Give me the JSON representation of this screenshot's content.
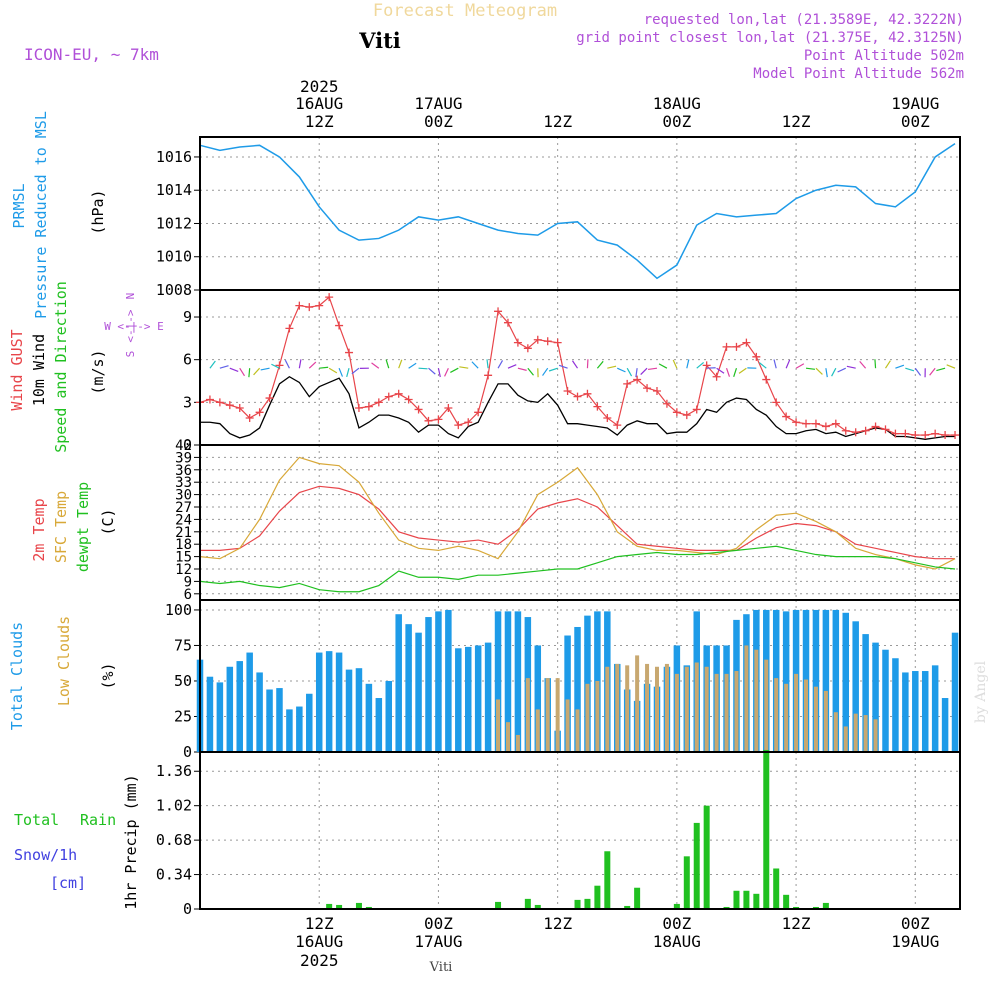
{
  "header": {
    "title": "Forecast Meteogram",
    "location": "Viti",
    "model": "ICON-EU, ~ 7km",
    "requested": "requested lon,lat (21.3589E, 42.3222N)",
    "grid_point": "grid point closest lon,lat (21.375E, 42.3125N)",
    "point_altitude": "Point Altitude 502m",
    "model_altitude": "Model Point Altitude 562m",
    "footer_location": "Viti",
    "watermark": "by Angel"
  },
  "time_axis": {
    "top": [
      {
        "hour": 12,
        "l1": "2025",
        "l2": "16AUG",
        "l3": "12Z"
      },
      {
        "hour": 24,
        "l1": "",
        "l2": "17AUG",
        "l3": "00Z"
      },
      {
        "hour": 36,
        "l1": "",
        "l2": "",
        "l3": "12Z"
      },
      {
        "hour": 48,
        "l1": "",
        "l2": "18AUG",
        "l3": "00Z"
      },
      {
        "hour": 60,
        "l1": "",
        "l2": "",
        "l3": "12Z"
      },
      {
        "hour": 72,
        "l1": "",
        "l2": "19AUG",
        "l3": "00Z"
      }
    ],
    "bottom": [
      {
        "hour": 12,
        "l1": "12Z",
        "l2": "16AUG",
        "l3": "2025"
      },
      {
        "hour": 24,
        "l1": "00Z",
        "l2": "17AUG",
        "l3": ""
      },
      {
        "hour": 36,
        "l1": "12Z",
        "l2": "",
        "l3": ""
      },
      {
        "hour": 48,
        "l1": "00Z",
        "l2": "18AUG",
        "l3": ""
      },
      {
        "hour": 60,
        "l1": "12Z",
        "l2": "",
        "l3": ""
      },
      {
        "hour": 72,
        "l1": "00Z",
        "l2": "19AUG",
        "l3": ""
      }
    ]
  },
  "colors": {
    "pressure": "#1e9be8",
    "gust": "#e8454a",
    "wind": "#000000",
    "wind_dir": "#20c020",
    "temp": "#e8454a",
    "sfc_temp": "#d8a838",
    "dewpt": "#20c020",
    "total_clouds": "#1e9be8",
    "low_clouds": "#c8a870",
    "rain": "#20c020",
    "snow": "#4040e0",
    "title": "#f0d89c",
    "meta": "#b050d8"
  },
  "panels": {
    "pressure": {
      "label1": "PRMSL",
      "label2": "Pressure Reduced to MSL",
      "unit": "(hPa)",
      "ticks": [
        "1008",
        "1010",
        "1012",
        "1014",
        "1016"
      ]
    },
    "wind": {
      "label_gust": "Wind GUST",
      "label_wind": "10m Wind",
      "label_dir": "Speed and Direction",
      "unit": "(m/s)",
      "ticks": [
        "0",
        "3",
        "6",
        "9"
      ],
      "compass_n": "N",
      "compass_s": "S",
      "compass_ew": "W <-|-> E",
      "compass_v1": "<-|->",
      "compass_v2": "<-|->"
    },
    "temp": {
      "label_t": "2m Temp",
      "label_sfc": "SFC Temp",
      "label_dew": "dewpt Temp",
      "unit": "(C)",
      "ticks": [
        "6",
        "9",
        "12",
        "15",
        "18",
        "21",
        "24",
        "27",
        "30",
        "33",
        "36",
        "39",
        "42"
      ]
    },
    "clouds": {
      "label_total": "Total Clouds",
      "label_low": "Low Clouds",
      "unit": "(%)",
      "ticks": [
        "0",
        "25",
        "50",
        "75",
        "100"
      ]
    },
    "precip": {
      "label_total": "Total",
      "label_rain": "Rain",
      "label_snow": "Snow/1h",
      "label_cm": "[cm]",
      "axis_label": "1hr Precip (mm)",
      "ticks": [
        "0",
        "0.34",
        "0.68",
        "1.02",
        "1.36"
      ]
    }
  },
  "chart_data": [
    {
      "type": "line",
      "title": "PRMSL Pressure Reduced to MSL",
      "ylabel": "(hPa)",
      "ylim": [
        1008,
        1017.2
      ],
      "x_hours": [
        0,
        2,
        4,
        6,
        8,
        10,
        12,
        14,
        16,
        18,
        20,
        22,
        24,
        26,
        28,
        30,
        32,
        34,
        36,
        38,
        40,
        42,
        44,
        46,
        48,
        50,
        52,
        54,
        56,
        58,
        60,
        62,
        64,
        66,
        68,
        70,
        72,
        74,
        76
      ],
      "series": [
        {
          "name": "PRMSL",
          "values": [
            1016.7,
            1016.4,
            1016.6,
            1016.7,
            1016,
            1014.8,
            1013.0,
            1011.6,
            1011.0,
            1011.1,
            1011.6,
            1012.4,
            1012.2,
            1012.4,
            1012.0,
            1011.6,
            1011.4,
            1011.3,
            1012.0,
            1012.1,
            1011.0,
            1010.7,
            1009.8,
            1008.7,
            1009.5,
            1011.9,
            1012.6,
            1012.4,
            1012.5,
            1012.6,
            1013.5,
            1014.0,
            1014.3,
            1014.2,
            1013.2,
            1013.0,
            1013.9,
            1016.0,
            1016.8
          ]
        }
      ]
    },
    {
      "type": "line",
      "title": "Wind GUST / 10m Wind Speed and Direction",
      "ylabel": "(m/s)",
      "ylim": [
        0,
        10.9
      ],
      "x_hours": [
        0,
        1,
        2,
        3,
        4,
        5,
        6,
        7,
        8,
        9,
        10,
        11,
        12,
        13,
        14,
        15,
        16,
        17,
        18,
        19,
        20,
        21,
        22,
        23,
        24,
        25,
        26,
        27,
        28,
        29,
        30,
        31,
        32,
        33,
        34,
        35,
        36,
        37,
        38,
        39,
        40,
        41,
        42,
        43,
        44,
        45,
        46,
        47,
        48,
        49,
        50,
        51,
        52,
        53,
        54,
        55,
        56,
        57,
        58,
        59,
        60,
        61,
        62,
        63,
        64,
        65,
        66,
        67,
        68,
        69,
        70,
        71,
        72,
        73,
        74,
        75,
        76
      ],
      "series": [
        {
          "name": "Wind GUST",
          "values": [
            3.0,
            3.2,
            3.0,
            2.8,
            2.6,
            1.9,
            2.3,
            3.3,
            5.6,
            8.2,
            9.8,
            9.7,
            9.8,
            10.4,
            8.4,
            6.5,
            2.6,
            2.7,
            3.0,
            3.4,
            3.6,
            3.2,
            2.5,
            1.7,
            1.8,
            2.6,
            1.4,
            1.6,
            2.3,
            4.9,
            9.4,
            8.6,
            7.2,
            6.8,
            7.4,
            7.3,
            7.2,
            3.8,
            3.4,
            3.6,
            2.7,
            1.9,
            1.4,
            4.3,
            4.6,
            4.0,
            3.8,
            2.9,
            2.3,
            2.1,
            2.5,
            5.6,
            4.8,
            6.9,
            6.9,
            7.2,
            6.2,
            4.6,
            3.0,
            2.0,
            1.6,
            1.5,
            1.5,
            1.3,
            1.5,
            1.0,
            0.9,
            1.0,
            1.3,
            1.1,
            0.8,
            0.8,
            0.7,
            0.7,
            0.8,
            0.7,
            0.7
          ]
        },
        {
          "name": "10m Wind",
          "values": [
            1.6,
            1.6,
            1.5,
            0.8,
            0.5,
            0.7,
            1.2,
            2.8,
            4.3,
            4.8,
            4.4,
            3.4,
            4.1,
            4.4,
            4.7,
            3.6,
            1.2,
            1.6,
            2.1,
            2.1,
            1.9,
            1.6,
            0.9,
            1.4,
            1.4,
            0.8,
            0.5,
            1.3,
            1.6,
            3.0,
            4.3,
            4.3,
            3.5,
            3.1,
            3.0,
            3.6,
            2.8,
            1.5,
            1.5,
            1.4,
            1.3,
            1.2,
            0.7,
            1.4,
            1.7,
            1.5,
            1.5,
            0.8,
            0.9,
            0.9,
            1.5,
            2.5,
            2.3,
            3.0,
            3.3,
            3.2,
            2.5,
            2.1,
            1.3,
            0.8,
            0.8,
            1.0,
            1.1,
            0.8,
            0.9,
            0.6,
            0.8,
            1.0,
            1.2,
            1.1,
            0.6,
            0.6,
            0.5,
            0.4,
            0.5,
            0.6,
            0.6
          ]
        }
      ]
    },
    {
      "type": "line",
      "title": "2m Temp / SFC Temp / dewpt Temp",
      "ylabel": "(C)",
      "ylim": [
        4.5,
        42
      ],
      "x_hours": [
        0,
        2,
        4,
        6,
        8,
        10,
        12,
        14,
        16,
        18,
        20,
        22,
        24,
        26,
        28,
        30,
        32,
        34,
        36,
        38,
        40,
        42,
        44,
        46,
        48,
        50,
        52,
        54,
        56,
        58,
        60,
        62,
        64,
        66,
        68,
        70,
        72,
        74,
        76
      ],
      "series": [
        {
          "name": "2m Temp",
          "values": [
            16.5,
            16.5,
            17.0,
            20.0,
            26.0,
            30.5,
            32.0,
            31.5,
            30.0,
            26.5,
            21.0,
            19.5,
            19.0,
            18.5,
            19.0,
            18.0,
            21.5,
            26.5,
            28.0,
            29.0,
            27.0,
            22.5,
            18.0,
            17.5,
            17.0,
            16.5,
            16.5,
            16.5,
            19.5,
            22.0,
            23.0,
            22.5,
            21.0,
            18.0,
            17.0,
            16.0,
            15.0,
            14.5,
            14.5
          ]
        },
        {
          "name": "SFC Temp",
          "values": [
            15.0,
            14.5,
            17.0,
            24.0,
            33.5,
            39.0,
            37.5,
            37.0,
            33.0,
            25.5,
            19.0,
            17.0,
            16.5,
            17.5,
            16.5,
            14.5,
            21.0,
            30.0,
            33.0,
            36.5,
            30.0,
            21.0,
            17.5,
            16.5,
            16.5,
            16.0,
            15.5,
            17.0,
            21.5,
            25.0,
            25.5,
            23.5,
            21.0,
            17.0,
            15.5,
            14.5,
            13.0,
            12.0,
            14.5
          ]
        },
        {
          "name": "dewpt Temp",
          "values": [
            9.0,
            8.5,
            9.0,
            8.0,
            7.5,
            8.5,
            7.0,
            6.5,
            6.5,
            8.0,
            11.5,
            10.0,
            10.0,
            9.5,
            10.5,
            10.5,
            11.0,
            11.5,
            12.0,
            12.0,
            13.5,
            15.0,
            15.5,
            16.0,
            15.5,
            15.5,
            16.0,
            16.5,
            17.0,
            17.5,
            16.5,
            15.5,
            15.0,
            15.0,
            15.0,
            14.5,
            13.5,
            12.5,
            12.0
          ]
        }
      ]
    },
    {
      "type": "bar",
      "title": "Total Clouds / Low Clouds",
      "ylabel": "(%)",
      "ylim": [
        0,
        107
      ],
      "x_hours": [
        0,
        1,
        2,
        3,
        4,
        5,
        6,
        7,
        8,
        9,
        10,
        11,
        12,
        13,
        14,
        15,
        16,
        17,
        18,
        19,
        20,
        21,
        22,
        23,
        24,
        25,
        26,
        27,
        28,
        29,
        30,
        31,
        32,
        33,
        34,
        35,
        36,
        37,
        38,
        39,
        40,
        41,
        42,
        43,
        44,
        45,
        46,
        47,
        48,
        49,
        50,
        51,
        52,
        53,
        54,
        55,
        56,
        57,
        58,
        59,
        60,
        61,
        62,
        63,
        64,
        65,
        66,
        67,
        68,
        69,
        70,
        71,
        72,
        73,
        74,
        75,
        76
      ],
      "series": [
        {
          "name": "Total Clouds",
          "values": [
            65,
            53,
            49,
            60,
            64,
            70,
            56,
            44,
            45,
            30,
            32,
            41,
            70,
            71,
            70,
            58,
            59,
            48,
            38,
            50,
            97,
            90,
            84,
            95,
            99,
            100,
            73,
            74,
            75,
            77,
            99,
            99,
            99,
            95,
            75,
            52,
            15,
            82,
            88,
            96,
            99,
            99,
            62,
            44,
            36,
            48,
            46,
            60,
            75,
            61,
            99,
            75,
            75,
            75,
            93,
            97,
            100,
            100,
            100,
            99,
            100,
            100,
            100,
            100,
            100,
            98,
            92,
            83,
            77,
            72,
            66,
            56,
            57,
            57,
            61,
            38,
            84
          ]
        },
        {
          "name": "Low Clouds",
          "values": [
            0,
            0,
            0,
            0,
            0,
            0,
            0,
            0,
            0,
            0,
            0,
            0,
            0,
            0,
            0,
            0,
            0,
            0,
            0,
            0,
            0,
            0,
            0,
            0,
            0,
            0,
            0,
            0,
            0,
            0,
            37,
            21,
            12,
            52,
            30,
            52,
            52,
            37,
            30,
            48,
            50,
            60,
            62,
            61,
            68,
            62,
            60,
            62,
            55,
            60,
            63,
            60,
            55,
            55,
            57,
            75,
            72,
            65,
            52,
            48,
            55,
            51,
            46,
            43,
            28,
            18,
            27,
            26,
            23,
            0,
            0,
            0,
            0,
            0,
            0,
            0,
            0
          ]
        }
      ]
    },
    {
      "type": "bar",
      "title": "Total Rain / Snow/1h",
      "ylabel": "1hr Precip (mm)",
      "ylim": [
        0,
        1.55
      ],
      "x_hours": [
        0,
        1,
        2,
        3,
        4,
        5,
        6,
        7,
        8,
        9,
        10,
        11,
        12,
        13,
        14,
        15,
        16,
        17,
        18,
        19,
        20,
        21,
        22,
        23,
        24,
        25,
        26,
        27,
        28,
        29,
        30,
        31,
        32,
        33,
        34,
        35,
        36,
        37,
        38,
        39,
        40,
        41,
        42,
        43,
        44,
        45,
        46,
        47,
        48,
        49,
        50,
        51,
        52,
        53,
        54,
        55,
        56,
        57,
        58,
        59,
        60,
        61,
        62,
        63,
        64,
        65,
        66,
        67,
        68,
        69,
        70,
        71,
        72,
        73,
        74,
        75,
        76
      ],
      "series": [
        {
          "name": "Total Rain",
          "values": [
            0,
            0,
            0,
            0,
            0,
            0,
            0,
            0,
            0,
            0,
            0,
            0,
            0,
            0.05,
            0.04,
            0.01,
            0.06,
            0.02,
            0,
            0,
            0,
            0,
            0,
            0,
            0,
            0,
            0,
            0,
            0,
            0,
            0.07,
            0,
            0,
            0.1,
            0.04,
            0,
            0,
            0,
            0.09,
            0.1,
            0.23,
            0.57,
            0,
            0.03,
            0.21,
            0,
            0,
            0,
            0.05,
            0.52,
            0.85,
            1.02,
            0,
            0.02,
            0.18,
            0.18,
            0.15,
            1.57,
            0.4,
            0.14,
            0.02,
            0,
            0.02,
            0.06,
            0,
            0,
            0,
            0,
            0,
            0,
            0,
            0,
            0,
            0,
            0,
            0,
            0
          ]
        },
        {
          "name": "Snow/1h",
          "values": [
            0,
            0,
            0,
            0,
            0,
            0,
            0,
            0,
            0,
            0,
            0,
            0,
            0,
            0,
            0,
            0,
            0,
            0,
            0,
            0,
            0,
            0,
            0,
            0,
            0,
            0,
            0,
            0,
            0,
            0,
            0,
            0,
            0,
            0,
            0,
            0,
            0,
            0,
            0,
            0,
            0,
            0,
            0,
            0,
            0,
            0,
            0,
            0,
            0,
            0,
            0,
            0,
            0,
            0,
            0,
            0,
            0,
            0,
            0,
            0,
            0,
            0,
            0,
            0,
            0,
            0,
            0,
            0,
            0,
            0,
            0,
            0,
            0,
            0,
            0,
            0,
            0
          ]
        }
      ]
    }
  ]
}
